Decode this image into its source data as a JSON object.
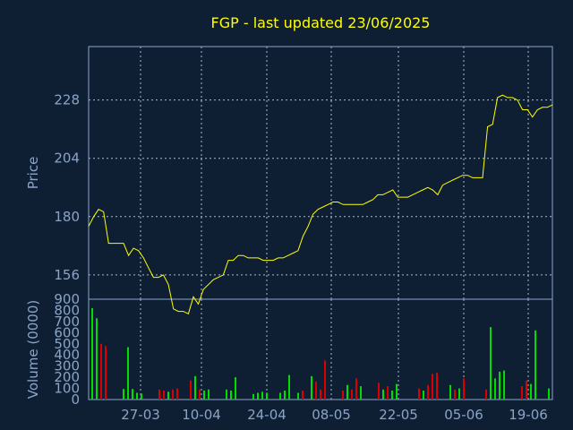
{
  "chart_data": [
    {
      "type": "line",
      "title": "FGP - last updated 23/06/2025",
      "ylabel": "Price",
      "ylim": [
        146,
        250
      ],
      "yticks": [
        156,
        180,
        204,
        228
      ],
      "grid": true,
      "line_color": "#ffff00",
      "values": [
        176,
        180,
        183,
        182,
        169,
        169,
        169,
        169,
        164,
        167,
        166,
        163,
        159,
        155,
        155,
        156,
        152,
        142,
        141,
        141,
        140,
        147,
        144,
        150,
        152,
        154,
        155,
        156,
        162,
        162,
        164,
        164,
        163,
        163,
        163,
        162,
        162,
        162,
        163,
        163,
        164,
        165,
        166,
        172,
        176,
        181,
        183,
        184,
        185,
        186,
        186,
        185,
        185,
        185,
        185,
        185,
        186,
        187,
        189,
        189,
        190,
        191,
        188,
        188,
        188,
        189,
        190,
        191,
        192,
        191,
        189,
        193,
        194,
        195,
        196,
        197,
        197,
        196,
        196,
        196,
        217,
        218,
        229,
        230,
        229,
        229,
        228,
        224,
        224,
        221,
        224,
        225,
        225,
        226
      ]
    },
    {
      "type": "bar",
      "ylabel": "Volume (0000)",
      "ylim": [
        0,
        900
      ],
      "yticks": [
        0,
        100,
        200,
        300,
        400,
        500,
        600,
        700,
        800,
        900
      ],
      "up_color": "#00dd00",
      "down_color": "#dd0000",
      "values": [
        820,
        730,
        500,
        480,
        0,
        0,
        0,
        95,
        470,
        95,
        60,
        55,
        0,
        0,
        0,
        90,
        80,
        70,
        90,
        100,
        0,
        0,
        170,
        210,
        90,
        80,
        90,
        0,
        0,
        0,
        90,
        80,
        200,
        0,
        0,
        0,
        50,
        60,
        70,
        60,
        0,
        0,
        60,
        80,
        220,
        0,
        60,
        80,
        0,
        210,
        160,
        90,
        350,
        0,
        0,
        0,
        80,
        130,
        90,
        190,
        120,
        0,
        0,
        0,
        150,
        90,
        120,
        80,
        140,
        0,
        0,
        0,
        0,
        100,
        80,
        130,
        230,
        240,
        0,
        0,
        130,
        90,
        100,
        190,
        0,
        0,
        0,
        0,
        90,
        650,
        190,
        250,
        260,
        0,
        0,
        0,
        120,
        170,
        140,
        620,
        0,
        0,
        100
      ],
      "up": [
        1,
        1,
        0,
        0,
        0,
        0,
        0,
        1,
        1,
        1,
        1,
        1,
        0,
        0,
        0,
        0,
        0,
        1,
        0,
        0,
        0,
        0,
        0,
        1,
        0,
        1,
        1,
        0,
        0,
        0,
        1,
        1,
        1,
        0,
        0,
        0,
        1,
        1,
        1,
        1,
        0,
        0,
        1,
        1,
        1,
        0,
        1,
        0,
        0,
        1,
        0,
        0,
        0,
        0,
        0,
        0,
        0,
        1,
        0,
        0,
        1,
        0,
        0,
        0,
        0,
        1,
        0,
        1,
        1,
        0,
        0,
        0,
        0,
        0,
        1,
        0,
        0,
        0,
        0,
        0,
        1,
        0,
        1,
        0,
        0,
        0,
        0,
        0,
        0,
        1,
        1,
        1,
        1,
        0,
        0,
        0,
        0,
        0,
        1,
        1,
        0,
        0,
        1
      ]
    }
  ],
  "x_ticks": [
    "27-03",
    "10-04",
    "24-04",
    "08-05",
    "22-05",
    "05-06",
    "19-06"
  ]
}
